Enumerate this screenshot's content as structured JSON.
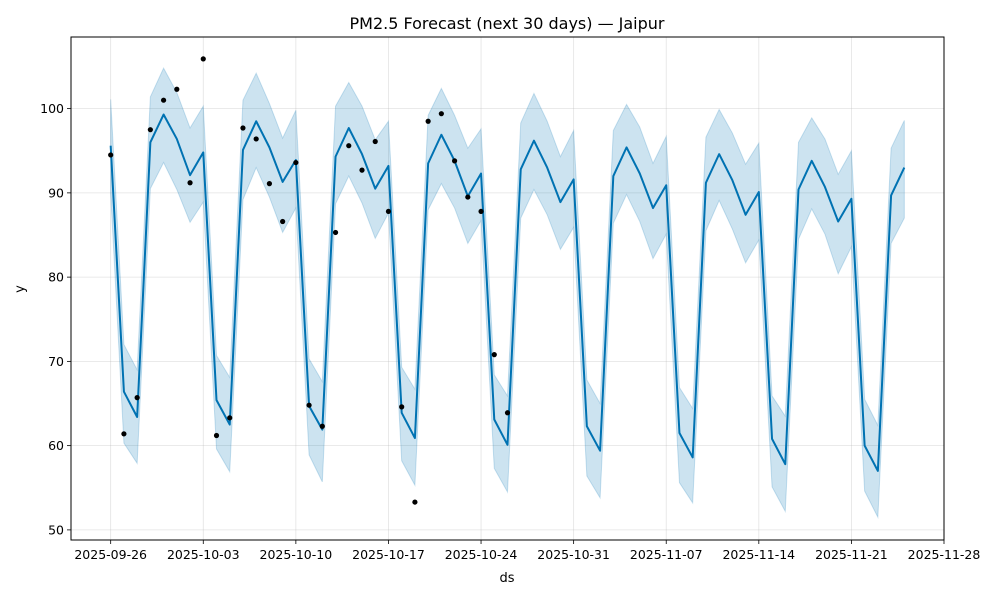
{
  "chart_data": {
    "type": "line",
    "title": "PM2.5 Forecast (next 30 days) — Jaipur",
    "xlabel": "ds",
    "ylabel": "y",
    "x_ticks": [
      "2025-09-26",
      "2025-10-03",
      "2025-10-10",
      "2025-10-17",
      "2025-10-24",
      "2025-10-31",
      "2025-11-07",
      "2025-11-14",
      "2025-11-21",
      "2025-11-28"
    ],
    "y_ticks": [
      50,
      60,
      70,
      80,
      90,
      100
    ],
    "xlim": [
      "2025-09-23T00:00",
      "2025-11-28T00:00"
    ],
    "ylim": [
      48.8,
      108.5
    ],
    "grid": true,
    "colors": {
      "forecast": "#0072b2",
      "interval": "#0072b2",
      "observed": "#000000"
    },
    "observed": {
      "x": [
        "2025-09-26",
        "2025-09-27",
        "2025-09-28",
        "2025-09-29",
        "2025-09-30",
        "2025-10-01",
        "2025-10-02",
        "2025-10-03",
        "2025-10-04",
        "2025-10-05",
        "2025-10-06",
        "2025-10-07",
        "2025-10-08",
        "2025-10-09",
        "2025-10-10",
        "2025-10-11",
        "2025-10-12",
        "2025-10-13",
        "2025-10-14",
        "2025-10-15",
        "2025-10-16",
        "2025-10-17",
        "2025-10-18",
        "2025-10-19",
        "2025-10-20",
        "2025-10-21",
        "2025-10-22",
        "2025-10-23",
        "2025-10-24",
        "2025-10-25",
        "2025-10-26"
      ],
      "y": [
        94.5,
        61.4,
        65.7,
        97.5,
        101.0,
        102.3,
        91.2,
        105.9,
        61.2,
        63.3,
        97.7,
        96.4,
        91.1,
        86.6,
        93.6,
        64.8,
        62.3,
        85.3,
        95.6,
        92.7,
        96.1,
        87.8,
        64.6,
        53.3,
        98.5,
        99.4,
        93.8,
        89.5,
        87.8,
        70.8,
        63.9
      ]
    },
    "forecast": {
      "start": "2025-09-26",
      "step_days": 1,
      "yhat": [
        95.6,
        66.4,
        63.4,
        96.0,
        99.3,
        96.4,
        92.1,
        94.8,
        65.4,
        62.5,
        95.1,
        98.5,
        95.4,
        91.3,
        93.9,
        64.7,
        61.9,
        94.3,
        97.7,
        94.6,
        90.5,
        93.2,
        63.9,
        60.9,
        93.5,
        96.9,
        93.8,
        89.6,
        92.3,
        63.1,
        60.1,
        92.8,
        96.2,
        93.0,
        88.9,
        91.6,
        62.3,
        59.4,
        92.0,
        95.4,
        92.3,
        88.2,
        90.9,
        61.5,
        58.6,
        91.2,
        94.6,
        91.5,
        87.4,
        90.1,
        60.8,
        57.8,
        90.4,
        93.8,
        90.7,
        86.6,
        89.3,
        60.0,
        57.0,
        89.7,
        93.0
      ],
      "yhat_lower": [
        89.9,
        60.3,
        57.9,
        90.5,
        93.6,
        90.4,
        86.5,
        88.9,
        59.6,
        56.9,
        89.2,
        93.0,
        89.5,
        85.3,
        88.2,
        58.9,
        55.7,
        88.7,
        92.0,
        88.8,
        84.6,
        87.6,
        58.2,
        55.3,
        88.0,
        91.1,
        88.2,
        84.0,
        86.7,
        57.3,
        54.5,
        87.0,
        90.4,
        87.4,
        83.3,
        85.9,
        56.4,
        53.8,
        86.4,
        89.8,
        86.6,
        82.2,
        85.1,
        55.6,
        53.2,
        85.5,
        89.1,
        85.7,
        81.7,
        84.4,
        55.1,
        52.2,
        84.5,
        88.1,
        85.1,
        80.4,
        83.6,
        54.6,
        51.5,
        84.0,
        87.0
      ],
      "yhat_upper": [
        101.1,
        72.0,
        69.0,
        101.4,
        104.8,
        101.9,
        97.7,
        100.3,
        70.7,
        68.1,
        101.0,
        104.2,
        100.6,
        96.5,
        99.8,
        70.3,
        67.6,
        100.3,
        103.1,
        100.3,
        96.3,
        98.5,
        69.3,
        66.7,
        99.2,
        102.4,
        99.2,
        95.3,
        97.6,
        68.4,
        65.9,
        98.3,
        101.8,
        98.5,
        94.3,
        97.4,
        67.8,
        65.0,
        97.4,
        100.5,
        97.8,
        93.5,
        96.7,
        66.9,
        64.4,
        96.6,
        99.9,
        97.1,
        93.4,
        95.9,
        65.9,
        63.5,
        96.0,
        98.9,
        96.4,
        92.2,
        95.0,
        65.5,
        62.4,
        95.3,
        98.6
      ]
    }
  }
}
